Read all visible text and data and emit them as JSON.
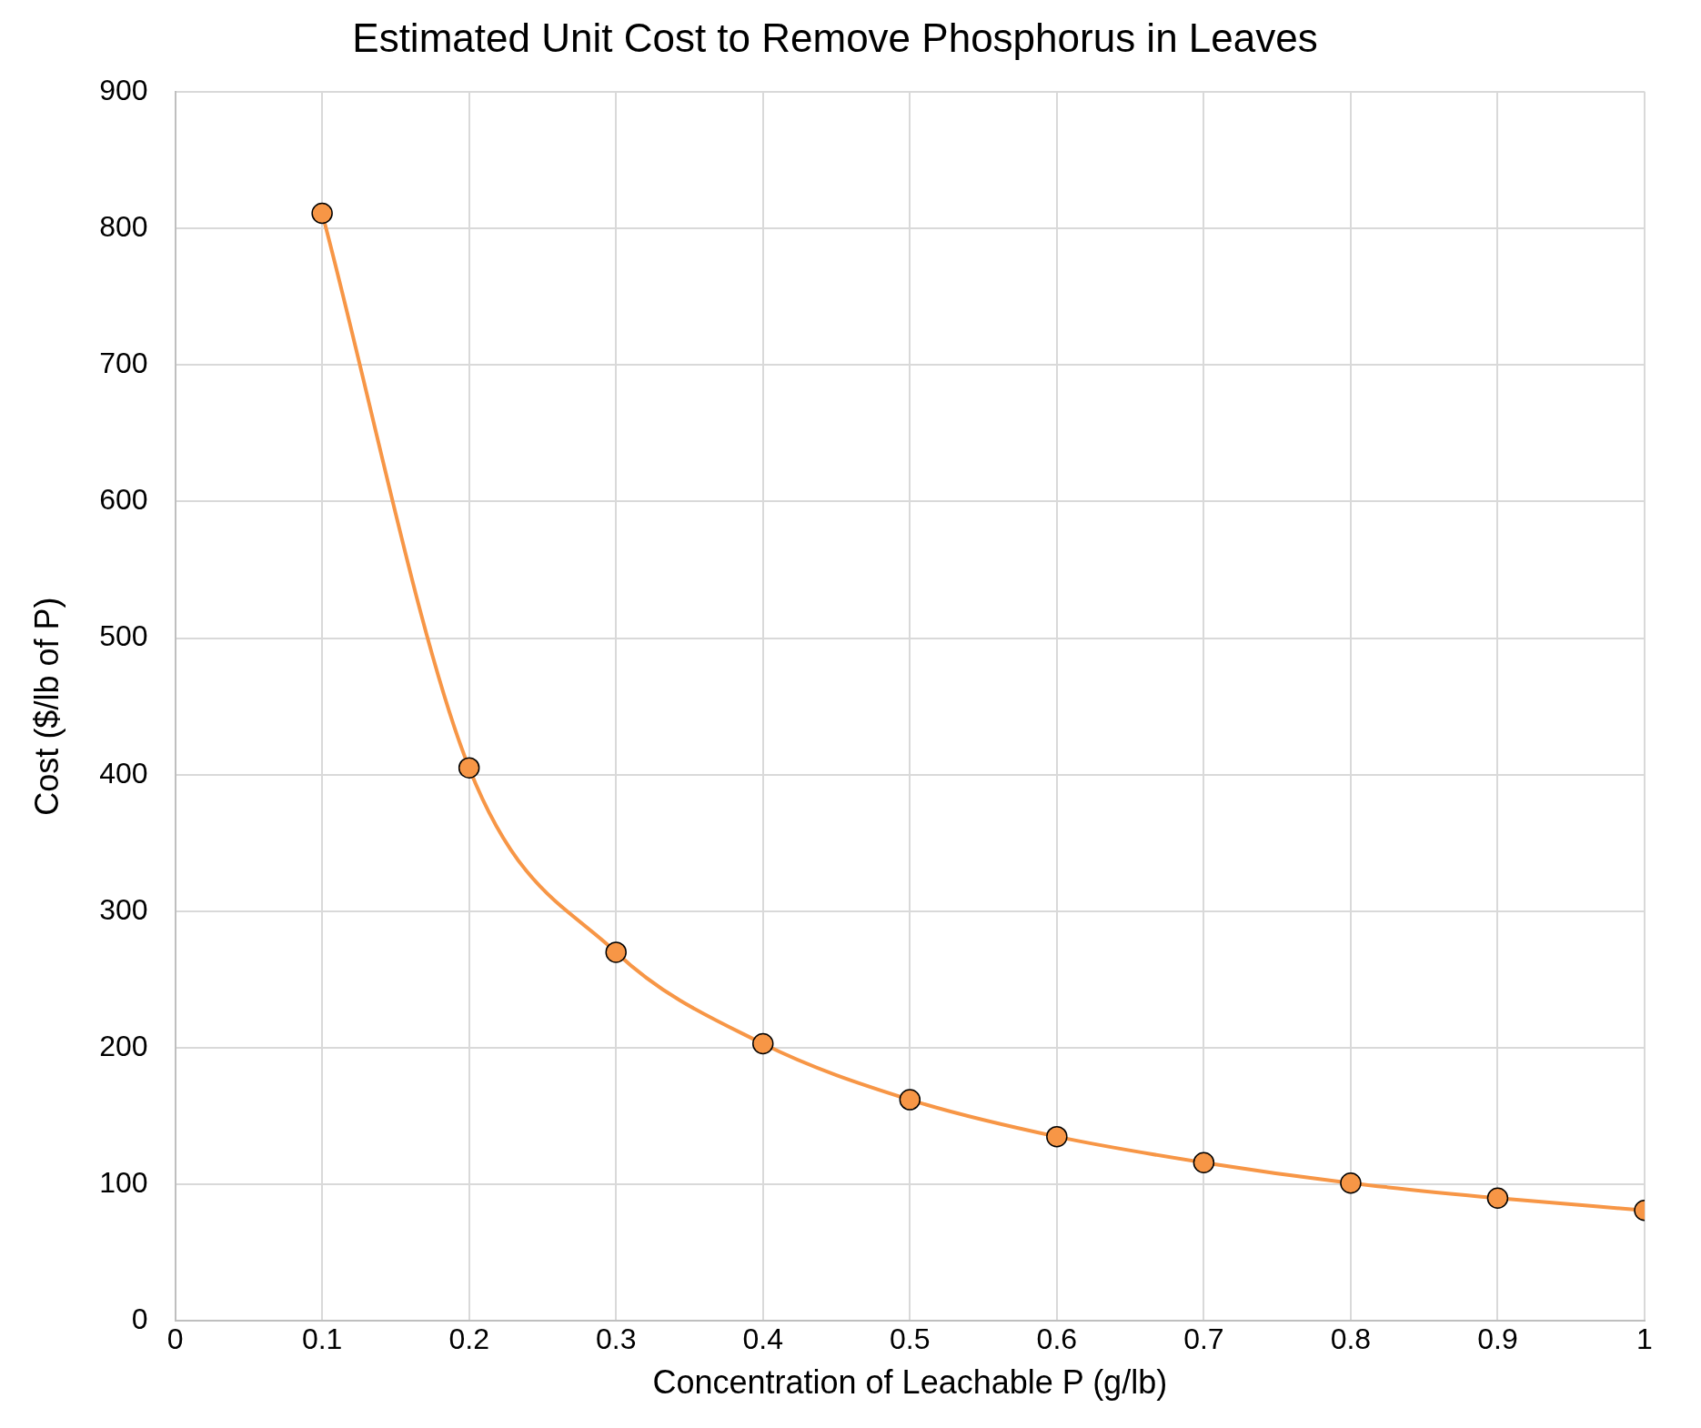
{
  "chart_data": {
    "type": "scatter",
    "title": "Estimated Unit Cost to Remove Phosphorus in Leaves",
    "xlabel": "Concentration of Leachable P (g/lb)",
    "ylabel": "Cost ($/lb of P)",
    "series": [
      {
        "type": "line",
        "color": "#f79646",
        "x": [
          0.1,
          0.2,
          0.3,
          0.4,
          0.5,
          0.6,
          0.7,
          0.8,
          0.9,
          1
        ],
        "values": [
          811,
          405,
          270,
          203,
          162,
          135,
          116,
          101,
          90,
          81
        ]
      }
    ],
    "xlim": [
      0,
      1
    ],
    "xticks": [
      0,
      0.1,
      0.2,
      0.3,
      0.4,
      0.5,
      0.6,
      0.7,
      0.8,
      0.9,
      1
    ],
    "ylim": [
      0,
      900
    ],
    "yticks": [
      0,
      100,
      200,
      300,
      400,
      500,
      600,
      700,
      800,
      900
    ],
    "grid": true,
    "legend": false,
    "marker": "circle",
    "line_style": "solid"
  }
}
